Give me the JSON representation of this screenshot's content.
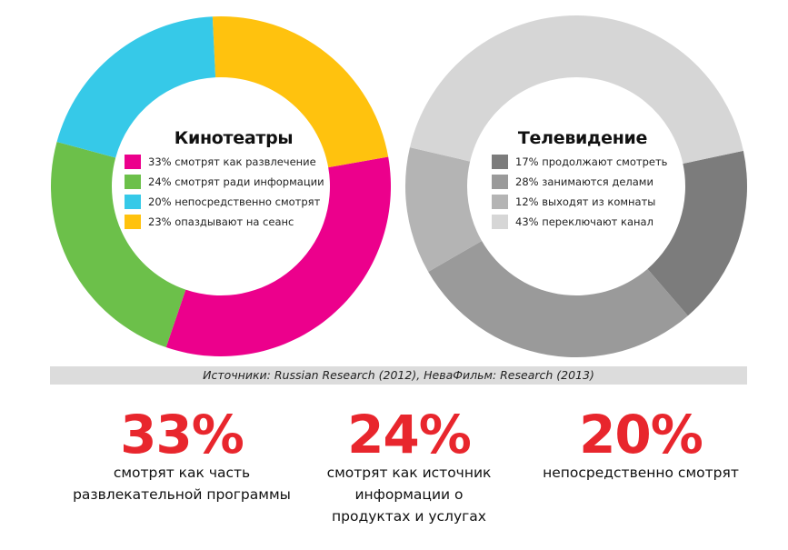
{
  "chart_data": [
    {
      "type": "pie",
      "title": "Кинотеатры",
      "labels": [
        "смотрят как развлечение",
        "смотрят ради информации",
        "непосредственно смотрят",
        "опаздывают на сеанс"
      ],
      "legend": [
        "33% смотрят как развлечение",
        "24% смотрят ради информации",
        "20% непосредственно смотрят",
        "23% опаздывают на сеанс"
      ],
      "values": [
        33,
        24,
        20,
        23
      ],
      "colors": [
        "#ec008c",
        "#6cc04a",
        "#36c9e8",
        "#ffc20e"
      ]
    },
    {
      "type": "pie",
      "title": "Телевидение",
      "labels": [
        "продолжают смотреть",
        "занимаются делами",
        "выходят из комнаты",
        "переключают канал"
      ],
      "legend": [
        "17% продолжают смотреть",
        "28% занимаются делами",
        "12% выходят из комнаты",
        "43% переключают канал"
      ],
      "values": [
        17,
        28,
        12,
        43
      ],
      "colors": [
        "#7c7c7c",
        "#9a9a9a",
        "#b4b4b4",
        "#d6d6d6"
      ]
    }
  ],
  "source": "Источники: Russian Research (2012), НеваФильм: Research (2013)",
  "stats": [
    {
      "value": "33%",
      "caption_lines": [
        "смотрят как часть",
        "развлекательной программы"
      ]
    },
    {
      "value": "24%",
      "caption_lines": [
        "смотрят как источник",
        "информации о",
        "продуктах и услугах"
      ]
    },
    {
      "value": "20%",
      "caption_lines": [
        "непосредственно смотрят"
      ]
    }
  ],
  "accent_color": "#e8262d"
}
